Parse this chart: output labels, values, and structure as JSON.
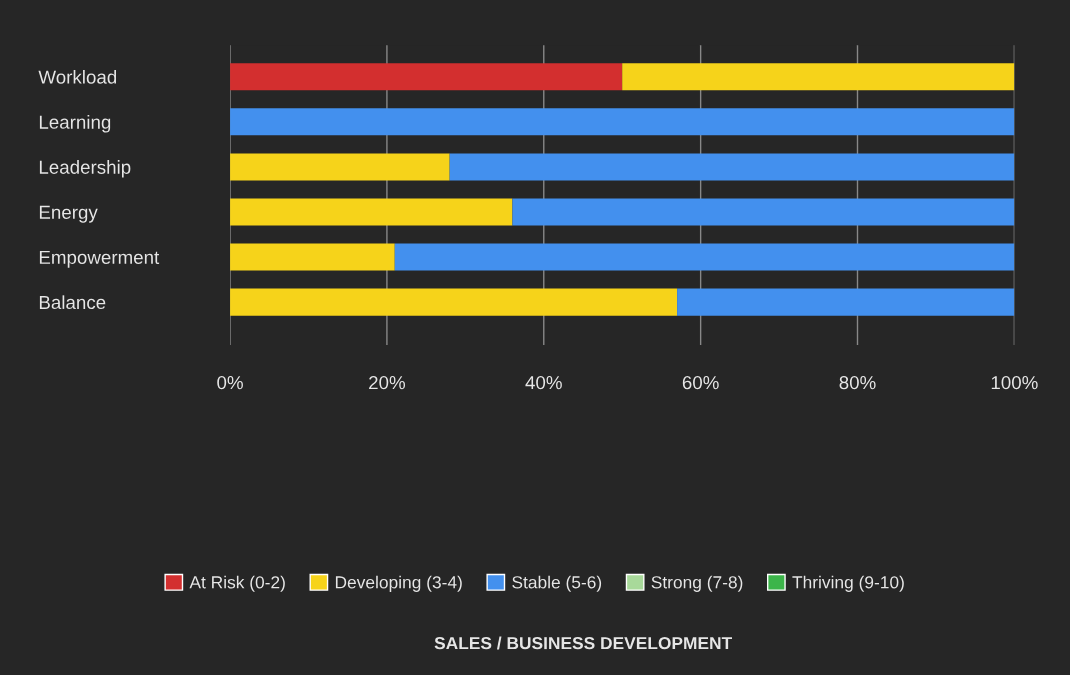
{
  "chart_data": {
    "type": "bar",
    "orientation": "horizontal",
    "stacked": true,
    "title": "SALES / BUSINESS DEVELOPMENT",
    "categories": [
      "Workload",
      "Learning",
      "Leadership",
      "Energy",
      "Empowerment",
      "Balance"
    ],
    "series": [
      {
        "name": "At Risk (0-2)",
        "color": "#d32f2f",
        "values": [
          50,
          0,
          0,
          0,
          0,
          0
        ]
      },
      {
        "name": "Developing (3-4)",
        "color": "#f6d31a",
        "values": [
          50,
          0,
          28,
          36,
          21,
          57
        ]
      },
      {
        "name": "Stable (5-6)",
        "color": "#4390ee",
        "values": [
          0,
          100,
          72,
          64,
          79,
          43
        ]
      },
      {
        "name": "Strong (7-8)",
        "color": "#a8d99a",
        "values": [
          0,
          0,
          0,
          0,
          0,
          0
        ]
      },
      {
        "name": "Thriving (9-10)",
        "color": "#3cb54a",
        "values": [
          0,
          0,
          0,
          0,
          0,
          0
        ]
      }
    ],
    "xlim": [
      0,
      100
    ],
    "xticks": [
      {
        "value": 0,
        "label": "0%"
      },
      {
        "value": 20,
        "label": "20%"
      },
      {
        "value": 40,
        "label": "40%"
      },
      {
        "value": 60,
        "label": "60%"
      },
      {
        "value": 80,
        "label": "80%"
      },
      {
        "value": 100,
        "label": "100%"
      }
    ],
    "grid": "x",
    "legend": "bottom"
  }
}
